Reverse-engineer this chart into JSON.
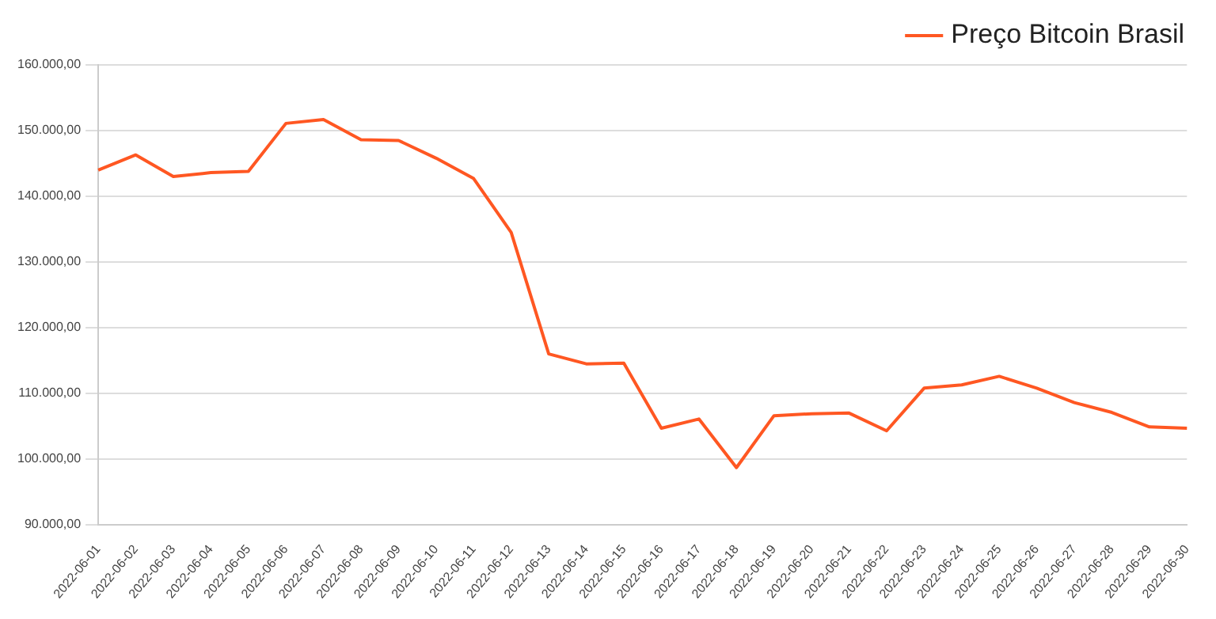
{
  "chart_data": {
    "type": "line",
    "categories": [
      "2022-06-01",
      "2022-06-02",
      "2022-06-03",
      "2022-06-04",
      "2022-06-05",
      "2022-06-06",
      "2022-06-07",
      "2022-06-08",
      "2022-06-09",
      "2022-06-10",
      "2022-06-11",
      "2022-06-12",
      "2022-06-13",
      "2022-06-14",
      "2022-06-15",
      "2022-06-16",
      "2022-06-17",
      "2022-06-18",
      "2022-06-19",
      "2022-06-20",
      "2022-06-21",
      "2022-06-22",
      "2022-06-23",
      "2022-06-24",
      "2022-06-25",
      "2022-06-26",
      "2022-06-27",
      "2022-06-28",
      "2022-06-29",
      "2022-06-30"
    ],
    "series": [
      {
        "name": "Preço Bitcoin Brasil",
        "color": "#ff5722",
        "values": [
          144000,
          146300,
          143000,
          143600,
          143800,
          151100,
          151700,
          148600,
          148500,
          145800,
          142700,
          134500,
          116000,
          114500,
          114600,
          104700,
          106100,
          98700,
          106600,
          106900,
          107000,
          104300,
          110800,
          111300,
          112600,
          110800,
          108600,
          107100,
          104900,
          104700
        ]
      }
    ],
    "ylim": [
      90000,
      160000
    ],
    "yticks": [
      {
        "value": 90000,
        "label": "90.000,00"
      },
      {
        "value": 100000,
        "label": "100.000,00"
      },
      {
        "value": 110000,
        "label": "110.000,00"
      },
      {
        "value": 120000,
        "label": "120.000,00"
      },
      {
        "value": 130000,
        "label": "130.000,00"
      },
      {
        "value": 140000,
        "label": "140.000,00"
      },
      {
        "value": 150000,
        "label": "150.000,00"
      },
      {
        "value": 160000,
        "label": "160.000,00"
      }
    ],
    "grid": "y",
    "legend": "top right",
    "marker": "none",
    "line_style": "solid"
  }
}
